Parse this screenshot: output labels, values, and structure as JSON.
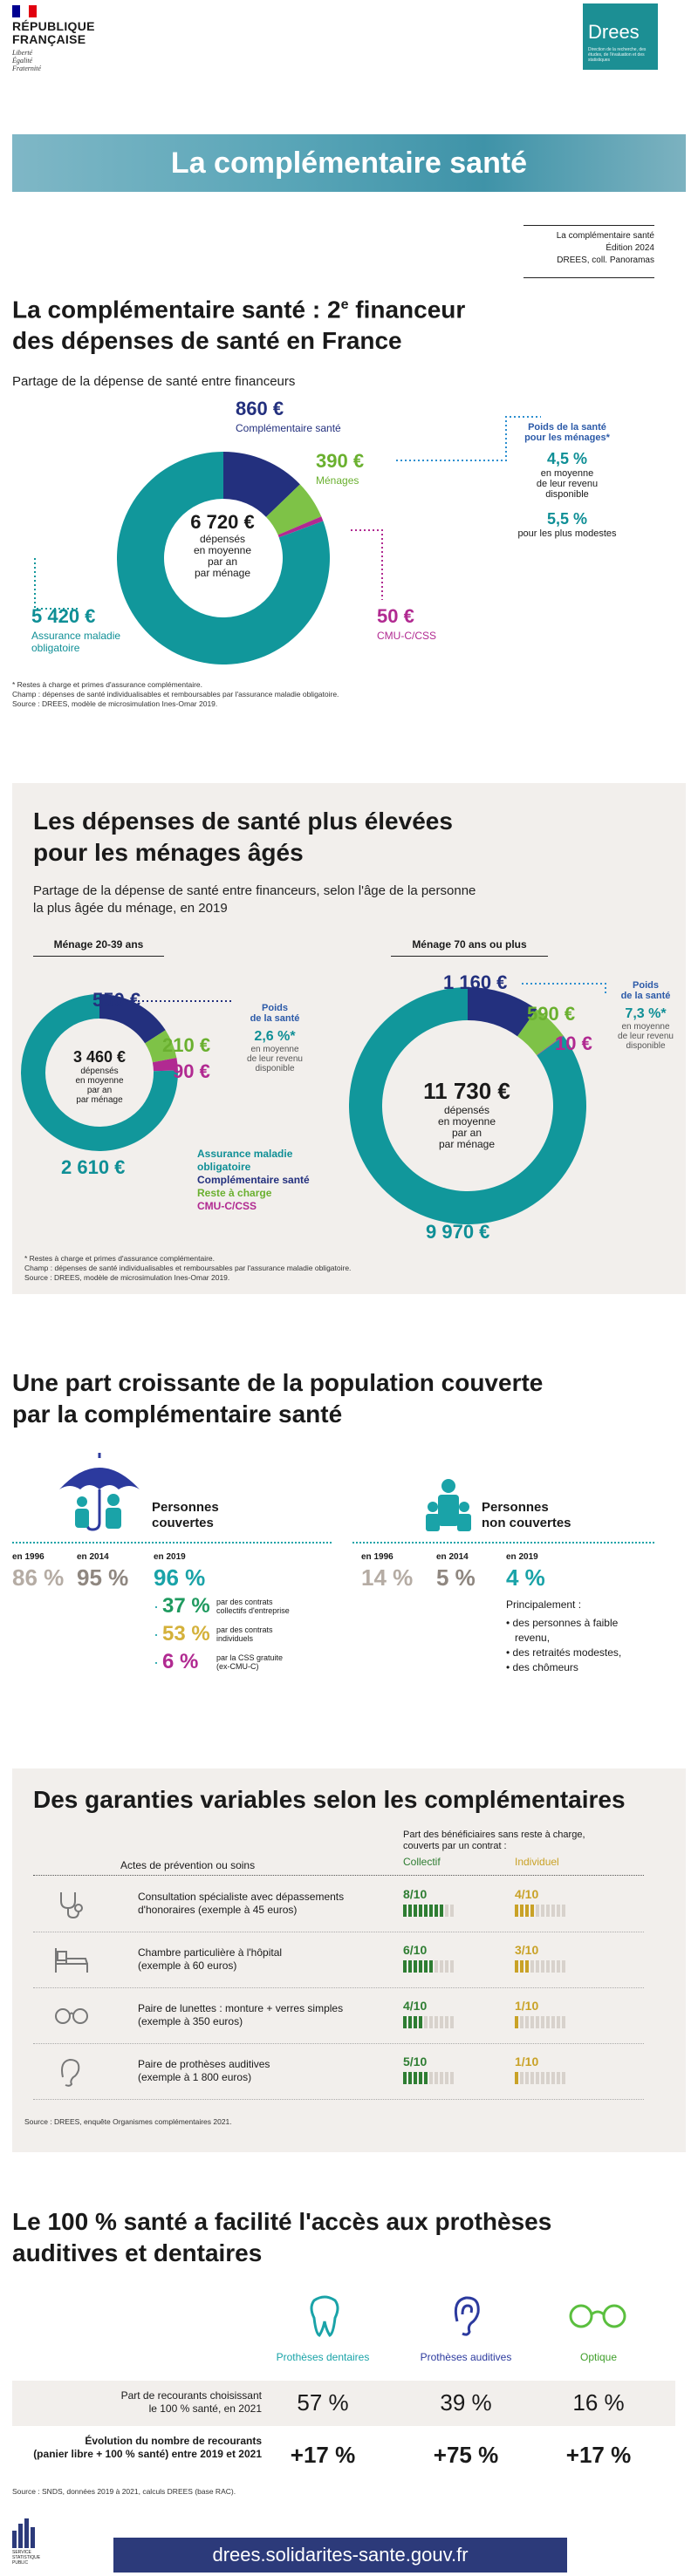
{
  "header": {
    "rf_title_1": "RÉPUBLIQUE",
    "rf_title_2": "FRANÇAISE",
    "rf_motto_1": "Liberté",
    "rf_motto_2": "Égalité",
    "rf_motto_3": "Fraternité",
    "drees_word": "Drees",
    "drees_sub": "Direction de la recherche, des études, de l'évaluation et des statistiques",
    "banner_title": "La complémentaire santé",
    "meta_1": "La complémentaire santé",
    "meta_2": "Édition 2024",
    "meta_3": "DREES, coll. Panoramas"
  },
  "s1": {
    "title_a": "La complémentaire santé : 2",
    "title_sup": "e",
    "title_b": " financeur",
    "title_2": "des dépenses de santé en France",
    "lead": "Partage de la dépense de santé entre financeurs",
    "center_val": "6 720 €",
    "center_txt_1": "dépensés",
    "center_txt_2": "en moyenne",
    "center_txt_3": "par an",
    "center_txt_4": "par ménage",
    "comp_val": "860 €",
    "comp_lbl": "Complémentaire santé",
    "men_val": "390 €",
    "men_lbl": "Ménages",
    "am_val": "5 420 €",
    "am_lbl_1": "Assurance maladie",
    "am_lbl_2": "obligatoire",
    "cmu_val": "50 €",
    "cmu_lbl": "CMU-C/CSS",
    "poids_1": "Poids de la santé",
    "poids_2": "pour les ménages*",
    "p1_val": "4,5 %",
    "p1_txt_1": "en moyenne",
    "p1_txt_2": "de leur revenu",
    "p1_txt_3": "disponible",
    "p2_val": "5,5 %",
    "p2_txt": "pour les plus modestes",
    "note_1": "* Restes à charge et primes d'assurance complémentaire.",
    "note_2": "Champ : dépenses de santé individualisables et remboursables par l'assurance maladie obligatoire.",
    "note_3": "Source : DREES, modèle de microsimulation Ines-Omar 2019."
  },
  "s2": {
    "title_1": "Les dépenses de santé plus élevées",
    "title_2": "pour les ménages âgés",
    "lead_1": "Partage de la dépense de santé entre financeurs, selon l'âge de la personne",
    "lead_2": "la plus âgée du ménage, en 2019",
    "young_hdr": "Ménage 20-39 ans",
    "old_hdr": "Ménage 70 ans ou plus",
    "y_center": "3 460 €",
    "y_comp": "550 €",
    "y_men": "210 €",
    "y_cmu": "90 €",
    "y_am": "2 610 €",
    "y_poids_1": "Poids",
    "y_poids_2": "de la santé",
    "y_pct": "2,6 %*",
    "y_pct_txt_1": "en moyenne",
    "y_pct_txt_2": "de leur revenu",
    "y_pct_txt_3": "disponible",
    "o_center": "11 730 €",
    "o_comp": "1 160 €",
    "o_men": "590 €",
    "o_cmu": "10 €",
    "o_am": "9 970 €",
    "o_poids_1": "Poids",
    "o_poids_2": "de la santé",
    "o_pct": "7,3 %*",
    "o_pct_txt_1": "en moyenne",
    "o_pct_txt_2": "de leur revenu",
    "o_pct_txt_3": "disponible",
    "c_txt_1": "dépensés",
    "c_txt_2": "en moyenne",
    "c_txt_3": "par an",
    "c_txt_4": "par ménage",
    "leg_am_1": "Assurance maladie",
    "leg_am_2": "obligatoire",
    "leg_comp": "Complémentaire santé",
    "leg_men": "Reste à charge",
    "leg_cmu": "CMU-C/CSS",
    "note_1": "* Restes à charge et primes d'assurance complémentaire.",
    "note_2": "Champ : dépenses de santé individualisables et remboursables par l'assurance maladie obligatoire.",
    "note_3": "Source : DREES, modèle de microsimulation Ines-Omar 2019."
  },
  "s3": {
    "title_1": "Une part croissante de la population couverte",
    "title_2": "par la complémentaire santé",
    "cov_lbl_1": "Personnes",
    "cov_lbl_2": "couvertes",
    "nocov_lbl_1": "Personnes",
    "nocov_lbl_2": "non couvertes",
    "y1996": "en 1996",
    "y2014": "en 2014",
    "y2019": "en 2019",
    "cov_1996": "86 %",
    "cov_2014": "95 %",
    "cov_2019": "96 %",
    "sub1_val": "37 %",
    "sub1_txt_1": "par des contrats",
    "sub1_txt_2": "collectifs d'entreprise",
    "sub2_val": "53 %",
    "sub2_txt_1": "par des contrats",
    "sub2_txt_2": "individuels",
    "sub3_val": "6 %",
    "sub3_txt_1": "par la CSS gratuite",
    "sub3_txt_2": "(ex-CMU-C)",
    "nc_1996": "14 %",
    "nc_2014": "5 %",
    "nc_2019": "4 %",
    "princ": "Principalement :",
    "b1_1": "des personnes à faible",
    "b1_2": "revenu,",
    "b2": "des retraités modestes,",
    "b3": "des chômeurs"
  },
  "s4": {
    "title": "Des garanties variables selon les complémentaires",
    "col_hdr": "Actes de prévention ou soins",
    "share_hdr_1": "Part des bénéficiaires sans reste à charge,",
    "share_hdr_2": "couverts par un contrat :",
    "collectif": "Collectif",
    "individuel": "Individuel",
    "rows": [
      {
        "icon": "stethoscope-icon",
        "l1": "Consultation spécialiste avec dépassements",
        "l2": "d'honoraires (exemple à 45 euros)",
        "col": "8/10",
        "ind": "4/10",
        "colv": 8,
        "indv": 4
      },
      {
        "icon": "hospital-bed-icon",
        "l1": "Chambre particulière à l'hôpital",
        "l2": "(exemple à 60 euros)",
        "col": "6/10",
        "ind": "3/10",
        "colv": 6,
        "indv": 3
      },
      {
        "icon": "glasses-icon",
        "l1": "Paire de lunettes : monture + verres simples",
        "l2": "(exemple à 350 euros)",
        "col": "4/10",
        "ind": "1/10",
        "colv": 4,
        "indv": 1
      },
      {
        "icon": "ear-icon",
        "l1": "Paire de prothèses auditives",
        "l2": "(exemple à 1 800 euros)",
        "col": "5/10",
        "ind": "1/10",
        "colv": 5,
        "indv": 1
      }
    ],
    "source": "Source : DREES, enquête Organismes complémentaires 2021.",
    "colors": {
      "collectif": "#2e7d32",
      "individuel": "#c9a227"
    }
  },
  "s5": {
    "title_1": "Le 100 % santé a facilité l'accès aux prothèses",
    "title_2": "auditives et dentaires",
    "col1": "Prothèses dentaires",
    "col2": "Prothèses auditives",
    "col3": "Optique",
    "r1_lbl_1": "Part de recourants choisissant",
    "r1_lbl_2": "le 100 % santé, en 2021",
    "r1_v1": "57 %",
    "r1_v2": "39 %",
    "r1_v3": "16 %",
    "r2_lbl_1": "Évolution du nombre de recourants",
    "r2_lbl_2": "(panier libre + 100 % santé) entre 2019 et 2021",
    "r2_v1": "+17 %",
    "r2_v2": "+75 %",
    "r2_v3": "+17 %",
    "source": "Source : SNDS, données 2019 à 2021, calculs DREES (base RAC).",
    "colors": {
      "dent": "#1aa3a8",
      "audit": "#2c3a9e",
      "opt": "#5bbf3f"
    }
  },
  "footer": {
    "url": "drees.solidarites-sante.gouv.fr",
    "stat_cap": "SERVICE STATISTIQUE PUBLIC"
  },
  "colors": {
    "am": "#11979b",
    "comp": "#23307e",
    "men": "#7ec247",
    "cmu": "#b12a91"
  }
}
